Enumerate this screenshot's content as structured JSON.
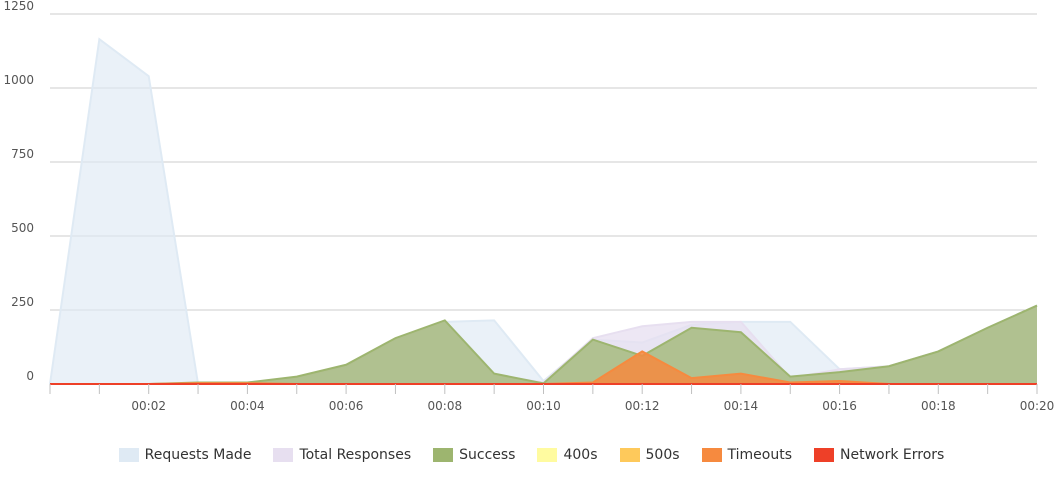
{
  "chart_data": {
    "type": "area",
    "x": [
      "00:00",
      "00:01",
      "00:02",
      "00:03",
      "00:04",
      "00:05",
      "00:06",
      "00:07",
      "00:08",
      "00:09",
      "00:10",
      "00:11",
      "00:12",
      "00:13",
      "00:14",
      "00:15",
      "00:16",
      "00:17",
      "00:18",
      "00:19",
      "00:20"
    ],
    "x_tick_labels": [
      "00:02",
      "00:04",
      "00:06",
      "00:08",
      "00:10",
      "00:12",
      "00:14",
      "00:16",
      "00:18",
      "00:20"
    ],
    "ylim": [
      0,
      1250
    ],
    "y_ticks": [
      0,
      250,
      500,
      750,
      1000,
      1250
    ],
    "grid": true,
    "legend_position": "bottom",
    "series": [
      {
        "name": "Requests Made",
        "color": "#dfeaf4",
        "opacity": 0.65,
        "values": [
          0,
          1165,
          1040,
          0,
          0,
          20,
          60,
          150,
          210,
          215,
          10,
          150,
          140,
          200,
          210,
          210,
          50,
          60,
          110,
          190,
          265
        ]
      },
      {
        "name": "Total Responses",
        "color": "#e7dff0",
        "opacity": 0.75,
        "values": [
          0,
          0,
          0,
          5,
          5,
          20,
          60,
          150,
          210,
          30,
          5,
          155,
          195,
          210,
          210,
          20,
          50,
          60,
          110,
          190,
          265
        ]
      },
      {
        "name": "Success",
        "color": "#9db56f",
        "opacity": 0.75,
        "values": [
          0,
          0,
          0,
          5,
          5,
          25,
          65,
          155,
          215,
          35,
          2,
          150,
          95,
          190,
          175,
          25,
          40,
          60,
          110,
          190,
          265
        ]
      },
      {
        "name": "400s",
        "color": "#fffba0",
        "opacity": 0.85,
        "values": [
          0,
          0,
          0,
          0,
          0,
          0,
          0,
          0,
          0,
          0,
          0,
          0,
          0,
          0,
          0,
          0,
          0,
          0,
          0,
          0,
          0
        ]
      },
      {
        "name": "500s",
        "color": "#fec95b",
        "opacity": 0.85,
        "values": [
          0,
          0,
          0,
          0,
          0,
          0,
          0,
          0,
          0,
          0,
          0,
          0,
          0,
          0,
          0,
          0,
          0,
          0,
          0,
          0,
          0
        ]
      },
      {
        "name": "Timeouts",
        "color": "#f68a3f",
        "opacity": 0.85,
        "values": [
          0,
          0,
          0,
          3,
          3,
          0,
          0,
          0,
          0,
          0,
          0,
          5,
          110,
          20,
          35,
          5,
          10,
          0,
          0,
          0,
          0
        ]
      },
      {
        "name": "Network Errors",
        "color": "#ee4028",
        "opacity": 0.9,
        "values": [
          0,
          0,
          0,
          0,
          0,
          0,
          0,
          0,
          0,
          0,
          0,
          0,
          0,
          0,
          0,
          0,
          0,
          0,
          0,
          0,
          0
        ]
      }
    ]
  }
}
